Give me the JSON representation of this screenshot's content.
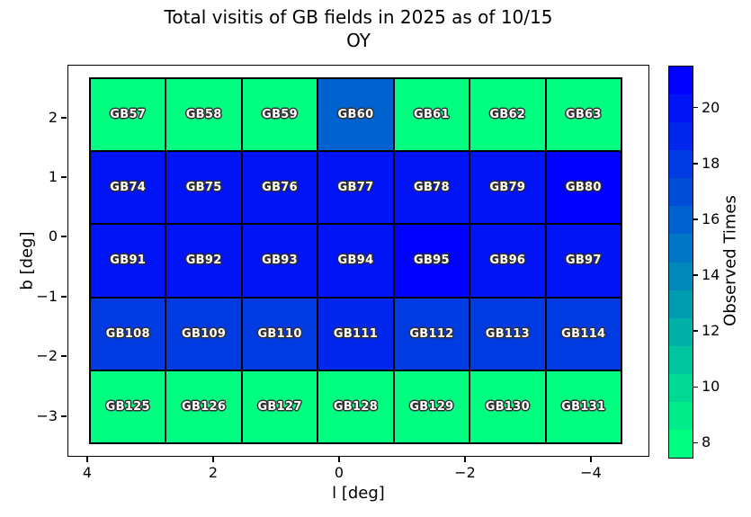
{
  "chart_data": {
    "type": "heatmap",
    "title": "Total visitis of GB fields in 2025 as of 10/15",
    "subtitle": "OY",
    "xlabel": "l [deg]",
    "ylabel": "b [deg]",
    "x_axis": {
      "ticks": [
        "4",
        "2",
        "0",
        "−2",
        "−4"
      ],
      "reversed": true,
      "range_hint": [
        4.6,
        -4.6
      ]
    },
    "y_axis": {
      "ticks": [
        "2",
        "1",
        "0",
        "−1",
        "−2",
        "−3"
      ],
      "range_hint": [
        2.7,
        -3.5
      ]
    },
    "colorbar": {
      "label": "Observed Times",
      "ticks": [
        8,
        10,
        12,
        14,
        16,
        18,
        20
      ],
      "vmin": 7.5,
      "vmax": 21.5,
      "levels": 14,
      "colormap": "winter_r",
      "min_color": "#00ff80",
      "max_color": "#0000ff"
    },
    "grid": {
      "columns_l_deg": [
        3.9,
        2.6,
        1.3,
        0.0,
        -1.3,
        -2.6,
        -3.9
      ],
      "rows_b_deg": [
        2.1,
        0.8,
        -0.4,
        -1.6,
        -2.9
      ],
      "rows": [
        {
          "cells": [
            {
              "label": "GB57",
              "value": 8
            },
            {
              "label": "GB58",
              "value": 8
            },
            {
              "label": "GB59",
              "value": 8
            },
            {
              "label": "GB60",
              "value": 16
            },
            {
              "label": "GB61",
              "value": 8
            },
            {
              "label": "GB62",
              "value": 8
            },
            {
              "label": "GB63",
              "value": 8
            }
          ]
        },
        {
          "cells": [
            {
              "label": "GB74",
              "value": 20
            },
            {
              "label": "GB75",
              "value": 20
            },
            {
              "label": "GB76",
              "value": 20
            },
            {
              "label": "GB77",
              "value": 20
            },
            {
              "label": "GB78",
              "value": 20
            },
            {
              "label": "GB79",
              "value": 20
            },
            {
              "label": "GB80",
              "value": 21
            }
          ]
        },
        {
          "cells": [
            {
              "label": "GB91",
              "value": 20
            },
            {
              "label": "GB92",
              "value": 20
            },
            {
              "label": "GB93",
              "value": 20
            },
            {
              "label": "GB94",
              "value": 20
            },
            {
              "label": "GB95",
              "value": 21
            },
            {
              "label": "GB96",
              "value": 20
            },
            {
              "label": "GB97",
              "value": 20
            }
          ]
        },
        {
          "cells": [
            {
              "label": "GB108",
              "value": 18
            },
            {
              "label": "GB109",
              "value": 18
            },
            {
              "label": "GB110",
              "value": 18
            },
            {
              "label": "GB111",
              "value": 19
            },
            {
              "label": "GB112",
              "value": 18
            },
            {
              "label": "GB113",
              "value": 18
            },
            {
              "label": "GB114",
              "value": 18
            }
          ]
        },
        {
          "cells": [
            {
              "label": "GB125",
              "value": 8
            },
            {
              "label": "GB126",
              "value": 8
            },
            {
              "label": "GB127",
              "value": 8
            },
            {
              "label": "GB128",
              "value": 8
            },
            {
              "label": "GB129",
              "value": 8
            },
            {
              "label": "GB130",
              "value": 8
            },
            {
              "label": "GB131",
              "value": 8
            }
          ]
        }
      ]
    }
  }
}
